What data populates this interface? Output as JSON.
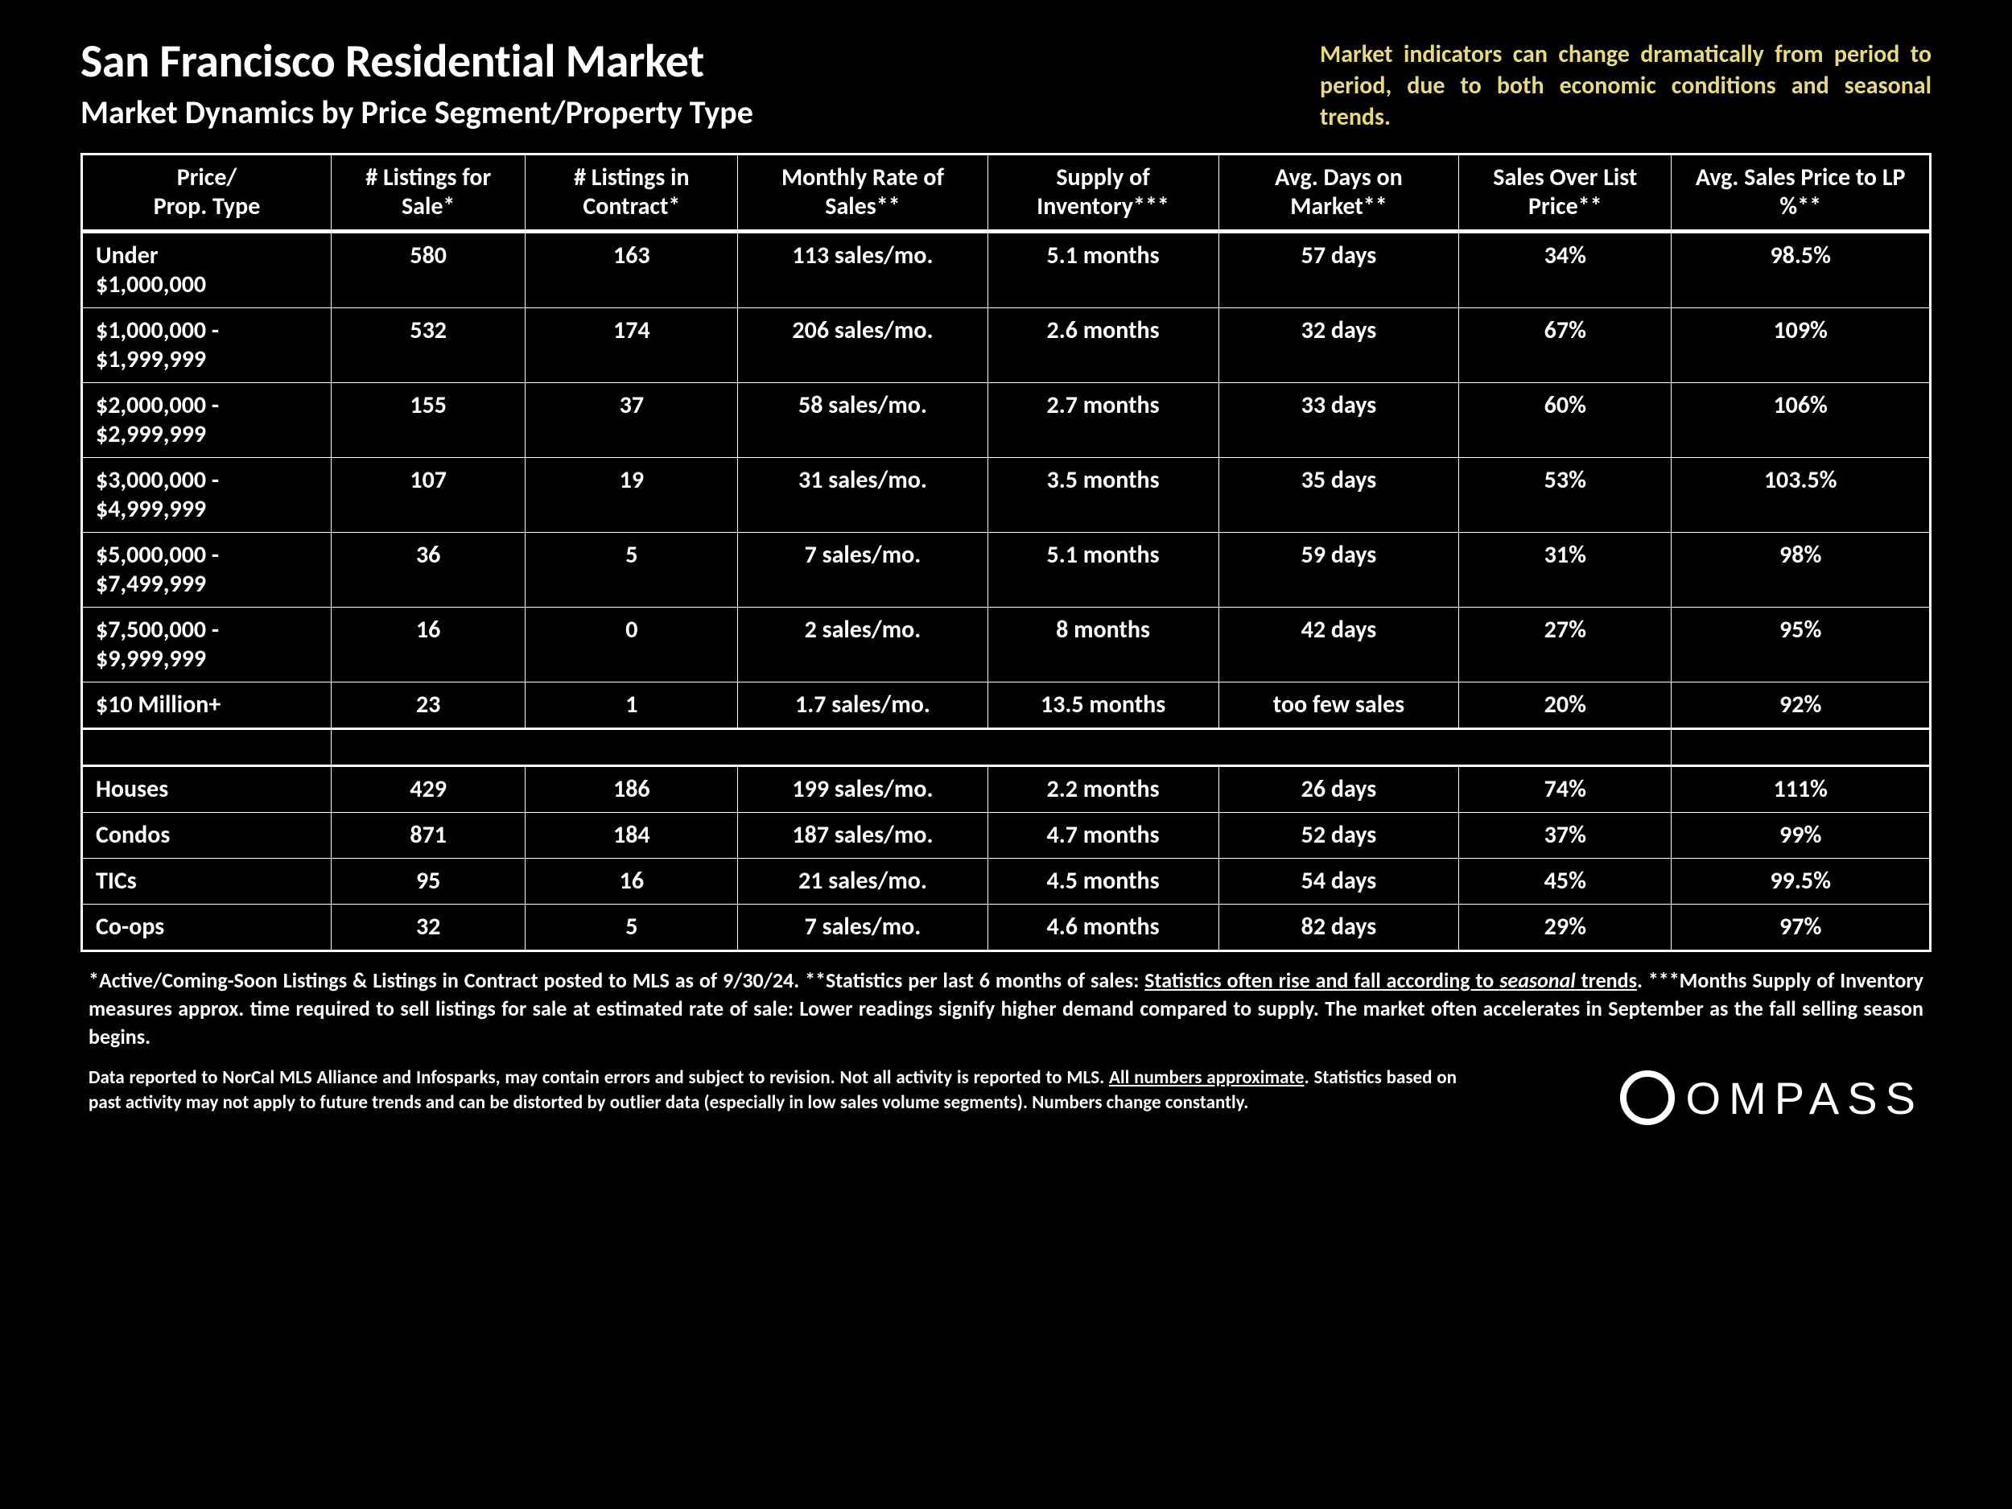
{
  "header": {
    "title": "San Francisco Residential Market",
    "subtitle": "Market Dynamics by Price Segment/Property Type",
    "note": "Market indicators can change dramatically from period to period, due to both economic conditions and seasonal trends."
  },
  "table": {
    "columns": [
      "Price/\nProp. Type",
      "# Listings for Sale*",
      "# Listings in Contract*",
      "Monthly Rate of Sales**",
      "Supply of Inventory***",
      "Avg. Days on Market**",
      "Sales Over List Price**",
      "Avg. Sales Price to LP %**"
    ],
    "price_rows": [
      {
        "label": "Under $1,000,000",
        "listings": "580",
        "contract": "163",
        "rate": "113 sales/mo.",
        "supply": "5.1 months",
        "dom": "57 days",
        "over": "34%",
        "sp_lp": "98.5%"
      },
      {
        "label": "$1,000,000 - $1,999,999",
        "listings": "532",
        "contract": "174",
        "rate": "206 sales/mo.",
        "supply": "2.6 months",
        "dom": "32 days",
        "over": "67%",
        "sp_lp": "109%"
      },
      {
        "label": "$2,000,000 - $2,999,999",
        "listings": "155",
        "contract": "37",
        "rate": "58 sales/mo.",
        "supply": "2.7 months",
        "dom": "33 days",
        "over": "60%",
        "sp_lp": "106%"
      },
      {
        "label": "$3,000,000 - $4,999,999",
        "listings": "107",
        "contract": "19",
        "rate": "31 sales/mo.",
        "supply": "3.5 months",
        "dom": "35 days",
        "over": "53%",
        "sp_lp": "103.5%"
      },
      {
        "label": "$5,000,000 - $7,499,999",
        "listings": "36",
        "contract": "5",
        "rate": "7 sales/mo.",
        "supply": "5.1 months",
        "dom": "59 days",
        "over": "31%",
        "sp_lp": "98%"
      },
      {
        "label": "$7,500,000 - $9,999,999",
        "listings": "16",
        "contract": "0",
        "rate": "2 sales/mo.",
        "supply": "8 months",
        "dom": "42 days",
        "over": "27%",
        "sp_lp": "95%"
      },
      {
        "label": "$10 Million+",
        "listings": "23",
        "contract": "1",
        "rate": "1.7 sales/mo.",
        "supply": "13.5 months",
        "dom": "too few sales",
        "over": "20%",
        "sp_lp": "92%"
      }
    ],
    "type_rows": [
      {
        "label": "Houses",
        "listings": "429",
        "contract": "186",
        "rate": "199 sales/mo.",
        "supply": "2.2 months",
        "dom": "26 days",
        "over": "74%",
        "sp_lp": "111%"
      },
      {
        "label": "Condos",
        "listings": "871",
        "contract": "184",
        "rate": "187 sales/mo.",
        "supply": "4.7 months",
        "dom": "52 days",
        "over": "37%",
        "sp_lp": "99%"
      },
      {
        "label": "TICs",
        "listings": "95",
        "contract": "16",
        "rate": "21 sales/mo.",
        "supply": "4.5 months",
        "dom": "54 days",
        "over": "45%",
        "sp_lp": "99.5%"
      },
      {
        "label": "Co-ops",
        "listings": "32",
        "contract": "5",
        "rate": "7 sales/mo.",
        "supply": "4.6 months",
        "dom": "82 days",
        "over": "29%",
        "sp_lp": "97%"
      }
    ]
  },
  "footnote1_a": "*Active/Coming-Soon Listings & Listings in Contract posted to MLS as of 9/30/24. **Statistics per last 6 months of sales: ",
  "footnote1_u1": "Statistics often rise and fall according to ",
  "footnote1_u1i": "seasonal",
  "footnote1_u1b": " trends",
  "footnote1_b": ". ***Months Supply of Inventory measures approx. time required to sell listings for sale at estimated rate of sale: Lower readings signify higher demand compared to supply. The market often accelerates in September as the fall selling season begins.",
  "footnote2_a": "Data reported to NorCal MLS Alliance and Infosparks, may contain errors and subject to revision. Not all activity is reported to MLS. ",
  "footnote2_u": "All numbers approximate",
  "footnote2_b": ". Statistics based on past activity may not apply to future trends and can be distorted by outlier data (especially in low sales volume segments). Numbers change constantly.",
  "logo_text": "OMPASS",
  "colors": {
    "background": "#000000",
    "text": "#ffffff",
    "accent": "#e8d97a",
    "border": "#ffffff"
  }
}
